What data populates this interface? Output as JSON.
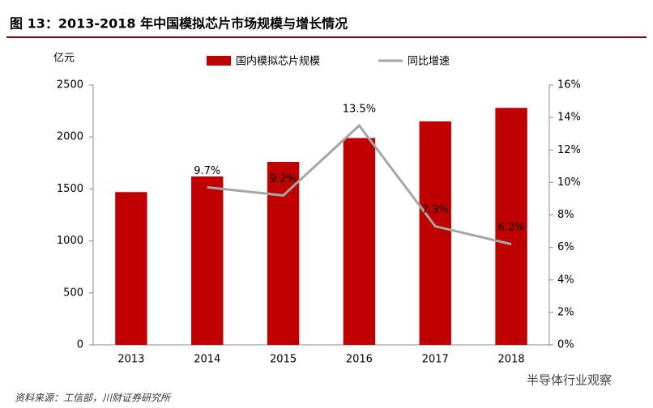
{
  "title": "图 13：2013-2018 年中国模拟芯片市场规模与增长情况",
  "source": "资料来源：工信部，川财证券研究所",
  "watermark": "半导体行业观察",
  "chart_data": {
    "type": "bar",
    "y_axis_label": "亿元",
    "categories": [
      "2013",
      "2014",
      "2015",
      "2016",
      "2017",
      "2018"
    ],
    "series": [
      {
        "name": "国内模拟芯片规模",
        "type": "bar",
        "color": "#c00000",
        "values": [
          1470,
          1620,
          1760,
          1990,
          2150,
          2280
        ]
      },
      {
        "name": "同比增速",
        "type": "line",
        "axis": "y2",
        "color": "#a6a6a6",
        "values": [
          null,
          9.7,
          9.2,
          13.5,
          7.3,
          6.2
        ],
        "value_labels": [
          null,
          "9.7%",
          "9.2%",
          "13.5%",
          "7.3%",
          "6.2%"
        ]
      }
    ],
    "ylim": [
      0,
      2500
    ],
    "yticks": [
      0,
      500,
      1000,
      1500,
      2000,
      2500
    ],
    "y2lim": [
      0,
      16
    ],
    "y2ticks": [
      {
        "value": 0,
        "label": "0%"
      },
      {
        "value": 2,
        "label": "2%"
      },
      {
        "value": 4,
        "label": "4%"
      },
      {
        "value": 6,
        "label": "6%"
      },
      {
        "value": 8,
        "label": "8%"
      },
      {
        "value": 10,
        "label": "10%"
      },
      {
        "value": 12,
        "label": "12%"
      },
      {
        "value": 14,
        "label": "14%"
      },
      {
        "value": 16,
        "label": "16%"
      }
    ]
  }
}
